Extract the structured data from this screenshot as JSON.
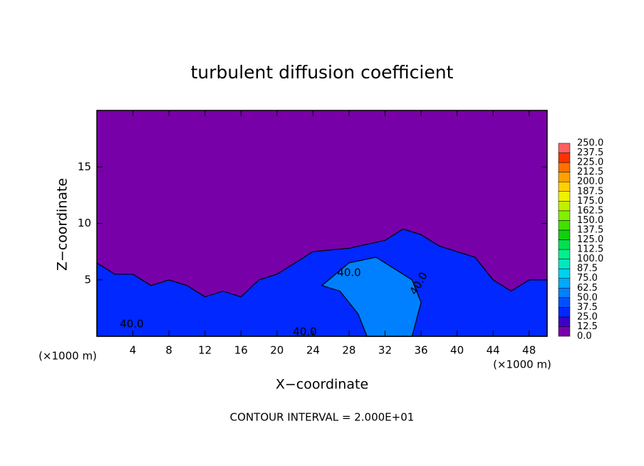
{
  "chart_data": {
    "type": "contour",
    "title": "turbulent diffusion coefficient",
    "x_label": "X−coordinate",
    "y_label": "Z−coordinate",
    "x_unit": "(×1000 m)",
    "y_unit": "(×1000 m)",
    "footnote": "CONTOUR INTERVAL = 2.000E+01",
    "xlim": [
      0,
      50
    ],
    "ylim": [
      0,
      20
    ],
    "xticks": [
      4,
      8,
      12,
      16,
      20,
      24,
      28,
      32,
      36,
      40,
      44,
      48
    ],
    "yticks": [
      5,
      10,
      15
    ],
    "background_level": 0,
    "regions": [
      {
        "level": 30,
        "x": [
          0,
          2,
          4,
          6,
          8,
          10,
          12,
          14,
          16,
          18,
          20,
          22,
          24,
          28,
          32,
          34,
          36,
          38,
          40,
          42,
          44,
          46,
          48,
          50,
          50,
          0
        ],
        "y": [
          6.5,
          5.5,
          5.5,
          4.5,
          5,
          4.5,
          3.5,
          4,
          3.5,
          5,
          5.5,
          6.5,
          7.5,
          7.8,
          8.5,
          9.5,
          9,
          8,
          7.5,
          7,
          5,
          4,
          5,
          5,
          0,
          0
        ]
      },
      {
        "level": 50,
        "x": [
          25,
          28,
          31,
          33,
          35,
          36,
          35,
          30,
          29,
          27
        ],
        "y": [
          4.5,
          6.5,
          7,
          6,
          5,
          3,
          0,
          0,
          2,
          4
        ]
      }
    ],
    "contour_labels": [
      "40.0",
      "40.0",
      "40.0",
      "40.0"
    ],
    "colorbar": {
      "ticks": [
        {
          "value": 0,
          "label": "0.0"
        },
        {
          "value": 12.5,
          "label": "12.5"
        },
        {
          "value": 25,
          "label": "25.0"
        },
        {
          "value": 37.5,
          "label": "37.5"
        },
        {
          "value": 50,
          "label": "50.0"
        },
        {
          "value": 62.5,
          "label": "62.5"
        },
        {
          "value": 75,
          "label": "75.0"
        },
        {
          "value": 87.5,
          "label": "87.5"
        },
        {
          "value": 100,
          "label": "100.0"
        },
        {
          "value": 112.5,
          "label": "112.5"
        },
        {
          "value": 125,
          "label": "125.0"
        },
        {
          "value": 137.5,
          "label": "137.5"
        },
        {
          "value": 150,
          "label": "150.0"
        },
        {
          "value": 162.5,
          "label": "162.5"
        },
        {
          "value": 175,
          "label": "175.0"
        },
        {
          "value": 187.5,
          "label": "187.5"
        },
        {
          "value": 200,
          "label": "200.0"
        },
        {
          "value": 212.5,
          "label": "212.5"
        },
        {
          "value": 225,
          "label": "225.0"
        },
        {
          "value": 237.5,
          "label": "237.5"
        },
        {
          "value": 250,
          "label": "250.0"
        }
      ],
      "colors": [
        "#7800a8",
        "#3c00c8",
        "#0028ff",
        "#0050ff",
        "#0080ff",
        "#00a8ff",
        "#00d0f0",
        "#00e8c0",
        "#00f090",
        "#00e050",
        "#10d010",
        "#40e000",
        "#80f000",
        "#c0f000",
        "#f0f000",
        "#ffd000",
        "#ffa000",
        "#ff7000",
        "#ff3000",
        "#ff6060"
      ]
    }
  }
}
